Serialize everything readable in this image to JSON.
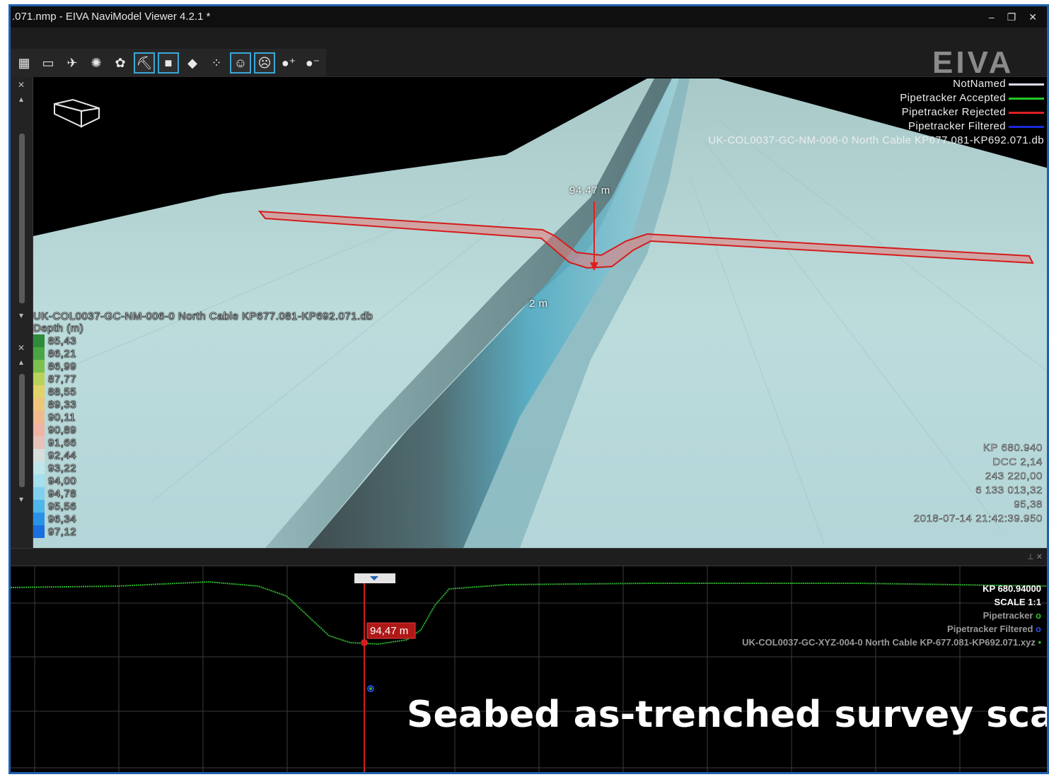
{
  "window": {
    "title": ".071.nmp - EIVA NaviModel Viewer 4.2.1 *",
    "controls": [
      "–",
      "❐",
      "✕"
    ]
  },
  "brand": {
    "logo_text": "EIVA"
  },
  "toolbar": {
    "tools": [
      {
        "icon": "grid-icon",
        "glyph": "▦",
        "active": false
      },
      {
        "icon": "ruler-icon",
        "glyph": "▭",
        "active": false
      },
      {
        "icon": "airplane-icon",
        "glyph": "✈",
        "active": false
      },
      {
        "icon": "sun-icon",
        "glyph": "✺",
        "active": false
      },
      {
        "icon": "palette-icon",
        "glyph": "✿",
        "active": false
      },
      {
        "icon": "shovel-icon",
        "glyph": "⛏",
        "active": true
      },
      {
        "icon": "square-icon",
        "glyph": "■",
        "active": true
      },
      {
        "icon": "tag-icon",
        "glyph": "◆",
        "active": false
      },
      {
        "icon": "points-icon",
        "glyph": "⁘",
        "active": false
      },
      {
        "icon": "smile-icon",
        "glyph": "☺",
        "active": true
      },
      {
        "icon": "frown-icon",
        "glyph": "☹",
        "active": true
      },
      {
        "icon": "add-point-icon",
        "glyph": "●⁺",
        "active": false
      },
      {
        "icon": "remove-point-icon",
        "glyph": "●⁻",
        "active": false
      }
    ]
  },
  "viewport": {
    "layers": [
      {
        "name": "NotNamed",
        "color": "#dcdcf0"
      },
      {
        "name": "Pipetracker Accepted",
        "color": "#22c822"
      },
      {
        "name": "Pipetracker Rejected",
        "color": "#e02020"
      },
      {
        "name": "Pipetracker Filtered",
        "color": "#1a2ad8"
      }
    ],
    "dataset": "UK-COL0037-GC-NM-006-0 North Cable KP677.081-KP692.071.db",
    "measurement_label": "94.47 m",
    "scale_label": "2 m",
    "depth_legend": {
      "dataset": "UK-COL0037-GC-NM-006-0 North Cable KP677.081-KP692.071.db",
      "header": "Depth (m)",
      "entries": [
        {
          "value": "85,43",
          "color": "#2e8b3a"
        },
        {
          "value": "86,21",
          "color": "#4aa644"
        },
        {
          "value": "86,99",
          "color": "#7cc04c"
        },
        {
          "value": "87,77",
          "color": "#b9d35a"
        },
        {
          "value": "88,55",
          "color": "#e1d36a"
        },
        {
          "value": "89,33",
          "color": "#efc57c"
        },
        {
          "value": "90,11",
          "color": "#f2b98f"
        },
        {
          "value": "90,89",
          "color": "#efb4a4"
        },
        {
          "value": "91,66",
          "color": "#e7c2b8"
        },
        {
          "value": "92,44",
          "color": "#d6dfdc"
        },
        {
          "value": "93,22",
          "color": "#bfe6ea"
        },
        {
          "value": "94,00",
          "color": "#a4e0ee"
        },
        {
          "value": "94,78",
          "color": "#7fd1ef"
        },
        {
          "value": "95,56",
          "color": "#4fb6ec"
        },
        {
          "value": "96,34",
          "color": "#2a92e6"
        },
        {
          "value": "97,12",
          "color": "#1a6ede"
        }
      ]
    },
    "readout": [
      "KP 680.940",
      "DCC 2,14",
      "243 220,00",
      "6 133 013,32",
      "95,38",
      "2018-07-14 21:42:39.950"
    ]
  },
  "profile": {
    "kp": "KP 680.94000",
    "scale": "SCALE 1:1",
    "measurement_label": "94,47 m",
    "legend": [
      {
        "name": "Pipetracker",
        "symbol": "o",
        "color": "#22c822"
      },
      {
        "name": "Pipetracker Filtered",
        "symbol": "o",
        "color": "#2a4ae8"
      },
      {
        "name": "UK-COL0037-GC-XYZ-004-0 North Cable KP-677.081-KP692.071.xyz",
        "symbol": "•",
        "color": "#22c822"
      }
    ],
    "caption": "Seabed as-trenched survey scan"
  },
  "colors": {
    "frame_border": "#1f5fb0",
    "seabed": "#b8dcdc",
    "trench": "#3a8fa8",
    "highlight": "#e02020"
  }
}
